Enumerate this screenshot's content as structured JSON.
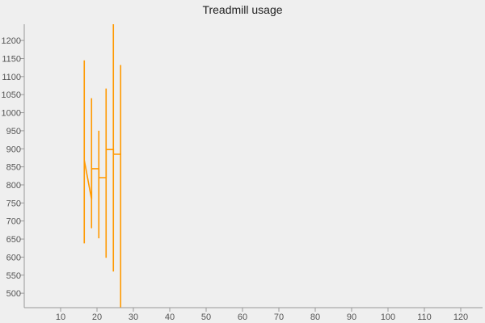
{
  "chart_data": {
    "type": "line",
    "title": "Treadmill usage",
    "xlabel": "",
    "ylabel": "",
    "xlim": [
      0,
      126
    ],
    "ylim": [
      460,
      1245
    ],
    "x_ticks": [
      10,
      20,
      30,
      40,
      50,
      60,
      70,
      80,
      90,
      100,
      110,
      120
    ],
    "y_ticks": [
      500,
      550,
      600,
      650,
      700,
      750,
      800,
      850,
      900,
      950,
      1000,
      1050,
      1100,
      1150,
      1200
    ],
    "grid": false,
    "legend": "none",
    "series": [
      {
        "color": "#ff9900",
        "points": [
          {
            "x": 16.5,
            "y": 868,
            "low": 638,
            "high": 1145
          },
          {
            "x": 18.5,
            "y": 760,
            "low": 680,
            "high": 1040
          },
          {
            "x": 18.5,
            "y": 845
          },
          {
            "x": 20.5,
            "y": 845,
            "low": 652,
            "high": 950
          },
          {
            "x": 20.5,
            "y": 820
          },
          {
            "x": 22.5,
            "y": 820,
            "low": 598,
            "high": 1067
          },
          {
            "x": 22.5,
            "y": 898
          },
          {
            "x": 24.5,
            "y": 898,
            "low": 560,
            "high": 1245
          },
          {
            "x": 24.5,
            "y": 885
          },
          {
            "x": 26.5,
            "y": 885,
            "low": 460,
            "high": 1132
          }
        ]
      }
    ]
  }
}
